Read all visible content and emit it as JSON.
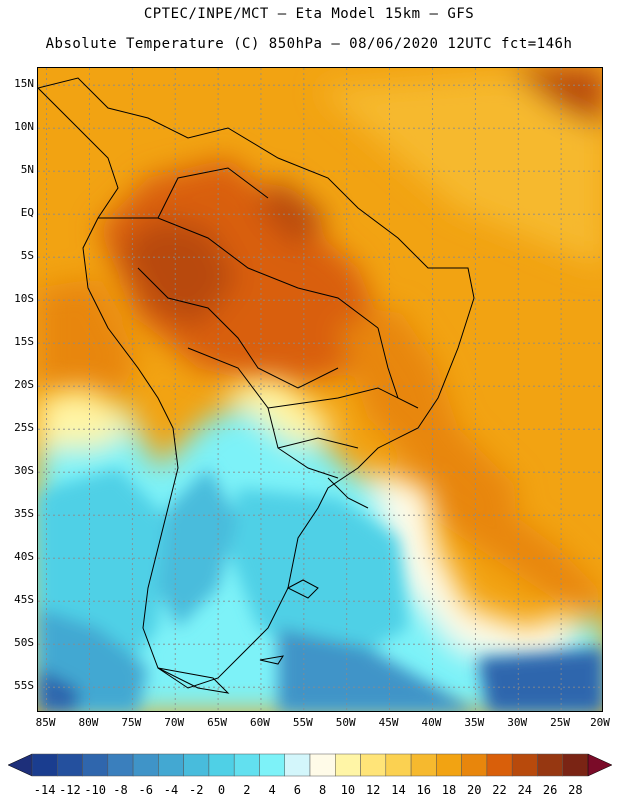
{
  "header": {
    "line1": "CPTEC/INPE/MCT –  Eta Model 15km – GFS",
    "line2": "Absolute Temperature (C) 850hPa – 08/06/2020 12UTC fct=146h"
  },
  "axes": {
    "lat_labels": [
      "15N",
      "10N",
      "5N",
      "EQ",
      "5S",
      "10S",
      "15S",
      "20S",
      "25S",
      "30S",
      "35S",
      "40S",
      "45S",
      "50S",
      "55S"
    ],
    "lat_values": [
      15,
      10,
      5,
      0,
      -5,
      -10,
      -15,
      -20,
      -25,
      -30,
      -35,
      -40,
      -45,
      -50,
      -55
    ],
    "lon_labels": [
      "85W",
      "80W",
      "75W",
      "70W",
      "65W",
      "60W",
      "55W",
      "50W",
      "45W",
      "40W",
      "35W",
      "30W",
      "25W",
      "20W"
    ],
    "lon_values": [
      -85,
      -80,
      -75,
      -70,
      -65,
      -60,
      -55,
      -50,
      -45,
      -40,
      -35,
      -30,
      -25,
      -20
    ],
    "lat_range": [
      -58,
      17
    ],
    "lon_range": [
      -86,
      -20
    ]
  },
  "colorbar": {
    "labels": [
      "-14",
      "-12",
      "-10",
      "-8",
      "-6",
      "-4",
      "-2",
      "0",
      "2",
      "4",
      "6",
      "8",
      "10",
      "12",
      "14",
      "16",
      "18",
      "20",
      "22",
      "24",
      "26",
      "28"
    ],
    "colors": [
      "#1a3d8f",
      "#24509e",
      "#2f66ad",
      "#3a7fbd",
      "#3f94c8",
      "#43a8d2",
      "#48bcdc",
      "#4fd0e6",
      "#62e0ef",
      "#7df2f8",
      "#d3f6fb",
      "#fffbe8",
      "#fff5a6",
      "#ffe478",
      "#fbd151",
      "#f6b92e",
      "#f2a312",
      "#e8860c",
      "#d95f0a",
      "#b84a0c",
      "#963711",
      "#7a2414"
    ],
    "left_arrow": "#1d2f7a",
    "right_arrow": "#7a0b28"
  }
}
